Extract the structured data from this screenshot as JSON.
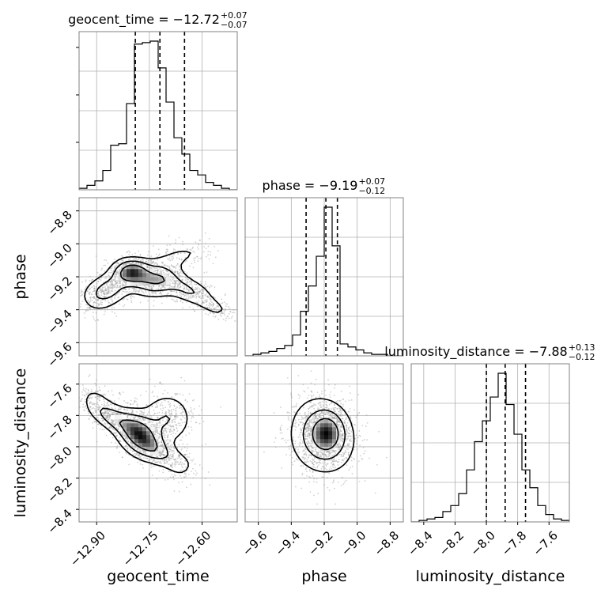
{
  "chart_data": {
    "type": "corner",
    "parameters": [
      "geocent_time",
      "phase",
      "luminosity_distance"
    ],
    "axis_labels": {
      "geocent_time": "geocent_time",
      "phase": "phase",
      "luminosity_distance": "luminosity_distance"
    },
    "ranges": {
      "geocent_time": [
        -12.95,
        -12.5
      ],
      "phase": [
        -9.68,
        -8.72
      ],
      "luminosity_distance": [
        -8.48,
        -7.47
      ]
    },
    "ticks": {
      "geocent_time": [
        -12.9,
        -12.75,
        -12.6
      ],
      "phase": [
        -9.6,
        -9.4,
        -9.2,
        -9.0,
        -8.8
      ],
      "luminosity_distance": [
        -8.4,
        -8.2,
        -8.0,
        -7.8,
        -7.6
      ]
    },
    "tick_labels": {
      "geocent_time": [
        "−12.90",
        "−12.75",
        "−12.60"
      ],
      "phase": [
        "−9.6",
        "−9.4",
        "−9.2",
        "−9.0",
        "−8.8"
      ],
      "luminosity_distance": [
        "−8.4",
        "−8.2",
        "−8.0",
        "−7.8",
        "−7.6"
      ]
    },
    "titles": [
      {
        "parameter": "geocent_time",
        "main": "geocent_time = −12.72",
        "sup": "+0.07",
        "sub": "−0.07"
      },
      {
        "parameter": "phase",
        "main": "phase = −9.19",
        "sup": "+0.07",
        "sub": "−0.12"
      },
      {
        "parameter": "luminosity_distance",
        "main": "luminosity_distance = −7.88",
        "sup": "+0.13",
        "sub": "−0.12"
      }
    ],
    "quantiles": {
      "geocent_time": [
        -12.79,
        -12.72,
        -12.65
      ],
      "phase": [
        -9.31,
        -9.19,
        -9.12
      ],
      "luminosity_distance": [
        -8.0,
        -7.88,
        -7.75
      ]
    },
    "histograms": {
      "geocent_time": {
        "edges": [
          -12.95,
          -12.9275,
          -12.905,
          -12.8825,
          -12.86,
          -12.8375,
          -12.815,
          -12.7925,
          -12.77,
          -12.7475,
          -12.725,
          -12.7025,
          -12.68,
          -12.6575,
          -12.635,
          -12.6125,
          -12.59,
          -12.5675,
          -12.545,
          -12.5225,
          -12.5
        ],
        "counts": [
          0.01,
          0.03,
          0.06,
          0.13,
          0.3,
          0.31,
          0.58,
          0.98,
          0.99,
          1.0,
          0.82,
          0.59,
          0.35,
          0.24,
          0.13,
          0.1,
          0.05,
          0.03,
          0.01,
          0.0
        ]
      },
      "phase": {
        "edges": [
          -9.68,
          -9.632,
          -9.584,
          -9.536,
          -9.488,
          -9.44,
          -9.392,
          -9.344,
          -9.296,
          -9.248,
          -9.2,
          -9.152,
          -9.104,
          -9.056,
          -9.008,
          -8.96,
          -8.912,
          -8.864,
          -8.816,
          -8.768,
          -8.72
        ],
        "counts": [
          0.0,
          0.01,
          0.02,
          0.03,
          0.05,
          0.07,
          0.14,
          0.3,
          0.47,
          0.67,
          1.0,
          0.74,
          0.08,
          0.06,
          0.04,
          0.02,
          0.01,
          0.01,
          0.0,
          0.0
        ]
      },
      "luminosity_distance": {
        "edges": [
          -8.48,
          -8.4295,
          -8.379,
          -8.3285,
          -8.278,
          -8.2275,
          -8.177,
          -8.1265,
          -8.076,
          -8.0255,
          -7.975,
          -7.9245,
          -7.874,
          -7.8235,
          -7.773,
          -7.7225,
          -7.672,
          -7.6215,
          -7.571,
          -7.5205,
          -7.47
        ],
        "counts": [
          0.0,
          0.01,
          0.02,
          0.03,
          0.07,
          0.11,
          0.19,
          0.35,
          0.54,
          0.68,
          0.84,
          1.0,
          0.79,
          0.59,
          0.35,
          0.23,
          0.11,
          0.05,
          0.02,
          0.01
        ]
      }
    },
    "density_peaks": {
      "geocent_time__phase": [
        [
          -12.8,
          -9.17
        ]
      ],
      "geocent_time__luminosity_distance": [
        [
          -12.81,
          -7.95
        ],
        [
          -12.85,
          -7.85
        ]
      ],
      "phase__luminosity_distance": [
        [
          -9.18,
          -7.91
        ]
      ]
    },
    "grid": true,
    "colors": {
      "line": "#000000",
      "grid": "#b0b0b0",
      "frame": "#808080",
      "samples": "#9a9a9a"
    }
  }
}
